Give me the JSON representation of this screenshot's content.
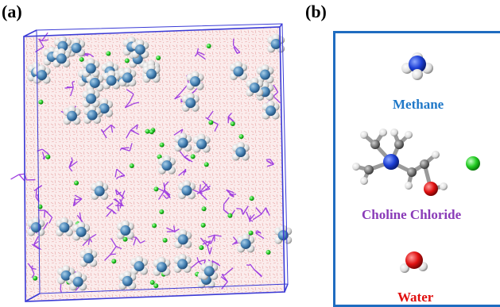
{
  "panels": {
    "a": {
      "label": "(a)"
    },
    "b": {
      "label": "(b)",
      "molecules": [
        {
          "name": "Methane",
          "color": "#1f78c8"
        },
        {
          "name": "Choline Chloride",
          "color": "#8a3bb8"
        },
        {
          "name": "Water",
          "color": "#e01010"
        }
      ]
    }
  },
  "colors": {
    "box_edge": "#3a3ad6",
    "methane_carbon": "#4a86b8",
    "hydrogen": "#e8e8e8",
    "nitrogen": "#1c3fd6",
    "oxygen": "#e01010",
    "chloride": "#22cc22",
    "choline_bonds": "#a040e0",
    "water_lines": "#e8a0a0"
  }
}
